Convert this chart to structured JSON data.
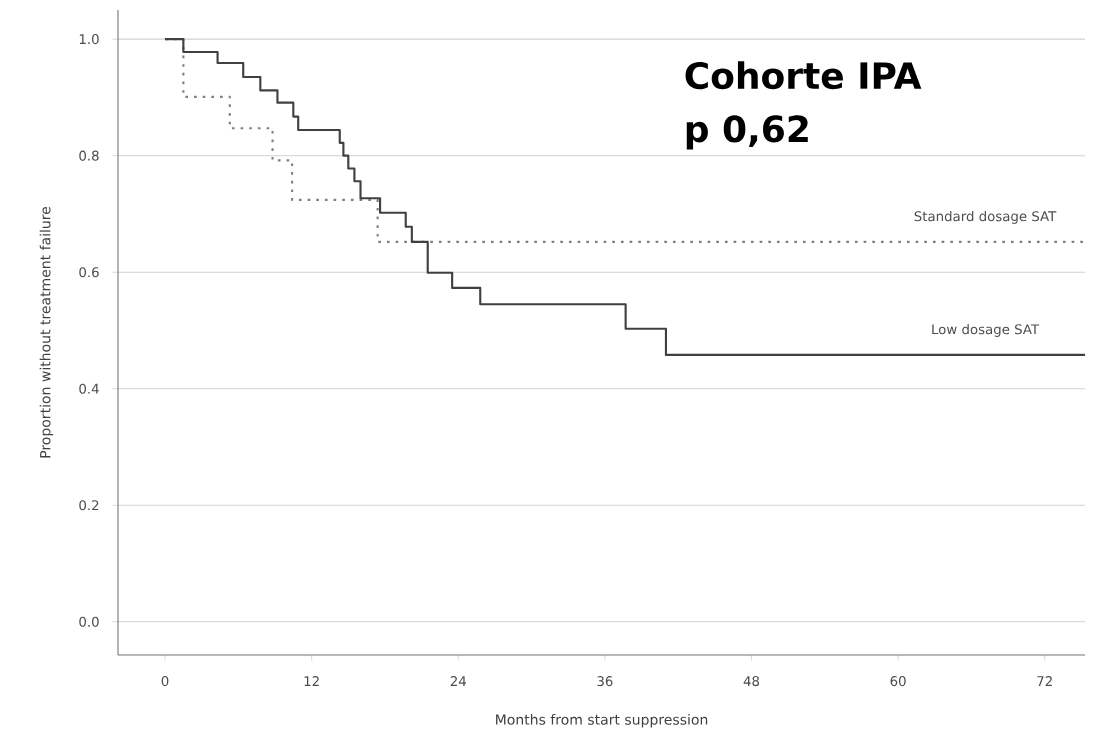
{
  "chart_data": {
    "type": "step",
    "title": "Cohorte IPA",
    "subtitle": "p 0,62",
    "xlabel": "Months from start suppression",
    "ylabel": "Proportion without treatment failure",
    "series": [
      {
        "name": "Standard dosage SAT",
        "color": "#808080",
        "line_style": "dotted",
        "x": [
          0,
          1.5,
          5.3,
          8.8,
          10.4,
          17.4,
          75.3
        ],
        "values": [
          1.0,
          0.901,
          0.847,
          0.792,
          0.724,
          0.652,
          0.652
        ]
      },
      {
        "name": "Low dosage SAT",
        "color": "#404040",
        "line_style": "solid",
        "x": [
          0,
          1.5,
          4.3,
          6.4,
          7.8,
          9.2,
          10.5,
          10.9,
          14.3,
          14.6,
          15.0,
          15.5,
          16.0,
          17.6,
          19.7,
          20.2,
          21.5,
          23.5,
          25.8,
          37.7,
          41.0,
          75.3
        ],
        "values": [
          1.0,
          0.978,
          0.959,
          0.935,
          0.912,
          0.891,
          0.867,
          0.844,
          0.822,
          0.8,
          0.778,
          0.756,
          0.727,
          0.702,
          0.678,
          0.652,
          0.599,
          0.573,
          0.545,
          0.503,
          0.458,
          0.458
        ]
      }
    ],
    "xlim": [
      -3.85,
      75.3
    ],
    "ylim": [
      -0.057,
      1.05
    ],
    "xticks": [
      0,
      12,
      24,
      36,
      48,
      60,
      72
    ],
    "yticks": [
      {
        "value": 0,
        "label": "0.0"
      },
      {
        "value": 0.2,
        "label": "0.2"
      },
      {
        "value": 0.4,
        "label": "0.4"
      },
      {
        "value": 0.6,
        "label": "0.6"
      },
      {
        "value": 0.8,
        "label": "0.8"
      },
      {
        "value": 1.0,
        "label": "1.0"
      }
    ],
    "grid": "y"
  }
}
